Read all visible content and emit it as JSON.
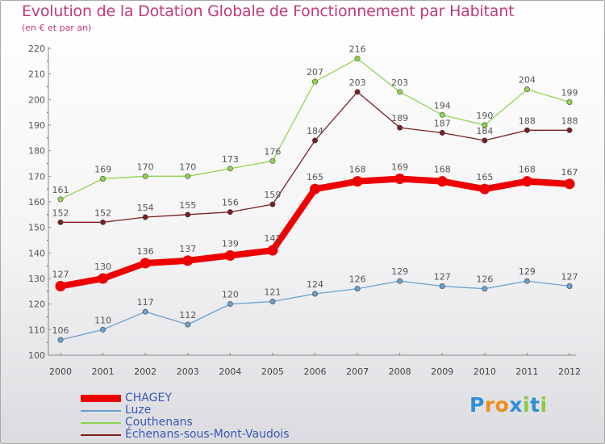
{
  "header": {
    "title": "Evolution de la Dotation Globale de Fonctionnement par Habitant",
    "subtitle": "(en € et par an)"
  },
  "logo": {
    "text": "Proxiti",
    "letters": [
      "P",
      "r",
      "o",
      "x",
      "i",
      "t",
      "i"
    ],
    "letter_colors": [
      "#2e8fd8",
      "#f08c1c",
      "#f08c1c",
      "#2e8fd8",
      "#8cc63f",
      "#2e8fd8",
      "#8cc63f"
    ]
  },
  "chart_data": {
    "type": "line",
    "title": "Evolution de la Dotation Globale de Fonctionnement par Habitant",
    "subtitle": "(en € et par an)",
    "xlabel": "",
    "ylabel": "",
    "ylim": [
      100,
      220
    ],
    "yticks": [
      100,
      110,
      120,
      130,
      140,
      150,
      160,
      170,
      180,
      190,
      200,
      210,
      220
    ],
    "grid": false,
    "legend_position": "bottom-left",
    "categories": [
      "2000",
      "2001",
      "2002",
      "2003",
      "2004",
      "2005",
      "2006",
      "2007",
      "2008",
      "2009",
      "2010",
      "2011",
      "2012"
    ],
    "series": [
      {
        "name": "CHAGEY",
        "color": "#ee0000",
        "emphasis": true,
        "values": [
          127,
          130,
          136,
          137,
          139,
          141,
          165,
          168,
          169,
          168,
          165,
          168,
          167
        ],
        "labels": [
          "127",
          "130",
          "136",
          "137",
          "139",
          "141",
          "165",
          "168",
          "169",
          "168",
          "165",
          "168",
          "167"
        ]
      },
      {
        "name": "Luze",
        "color": "#6b9fd0",
        "emphasis": false,
        "values": [
          106,
          110,
          117,
          112,
          120,
          121,
          124,
          126,
          129,
          127,
          126,
          129,
          127
        ],
        "labels": [
          "106",
          "110",
          "117",
          "112",
          "120",
          "121",
          "124",
          "126",
          "129",
          "127",
          "126",
          "129",
          "127"
        ]
      },
      {
        "name": "Couthenans",
        "color": "#8fd44e",
        "emphasis": false,
        "values": [
          161,
          169,
          170,
          170,
          173,
          176,
          207,
          216,
          203,
          194,
          190,
          204,
          199
        ],
        "labels": [
          "161",
          "169",
          "170",
          "170",
          "173",
          "176",
          "207",
          "216",
          "203",
          "194",
          "190",
          "204",
          "199"
        ]
      },
      {
        "name": "Échenans-sous-Mont-Vaudois",
        "color": "#7a1f1f",
        "emphasis": false,
        "values": [
          152,
          152,
          154,
          155,
          156,
          159,
          184,
          203,
          189,
          187,
          184,
          188,
          188
        ],
        "labels": [
          "152",
          "152",
          "154",
          "155",
          "156",
          "159",
          "184",
          "203",
          "189",
          "187",
          "184",
          "188",
          "188"
        ]
      }
    ]
  }
}
